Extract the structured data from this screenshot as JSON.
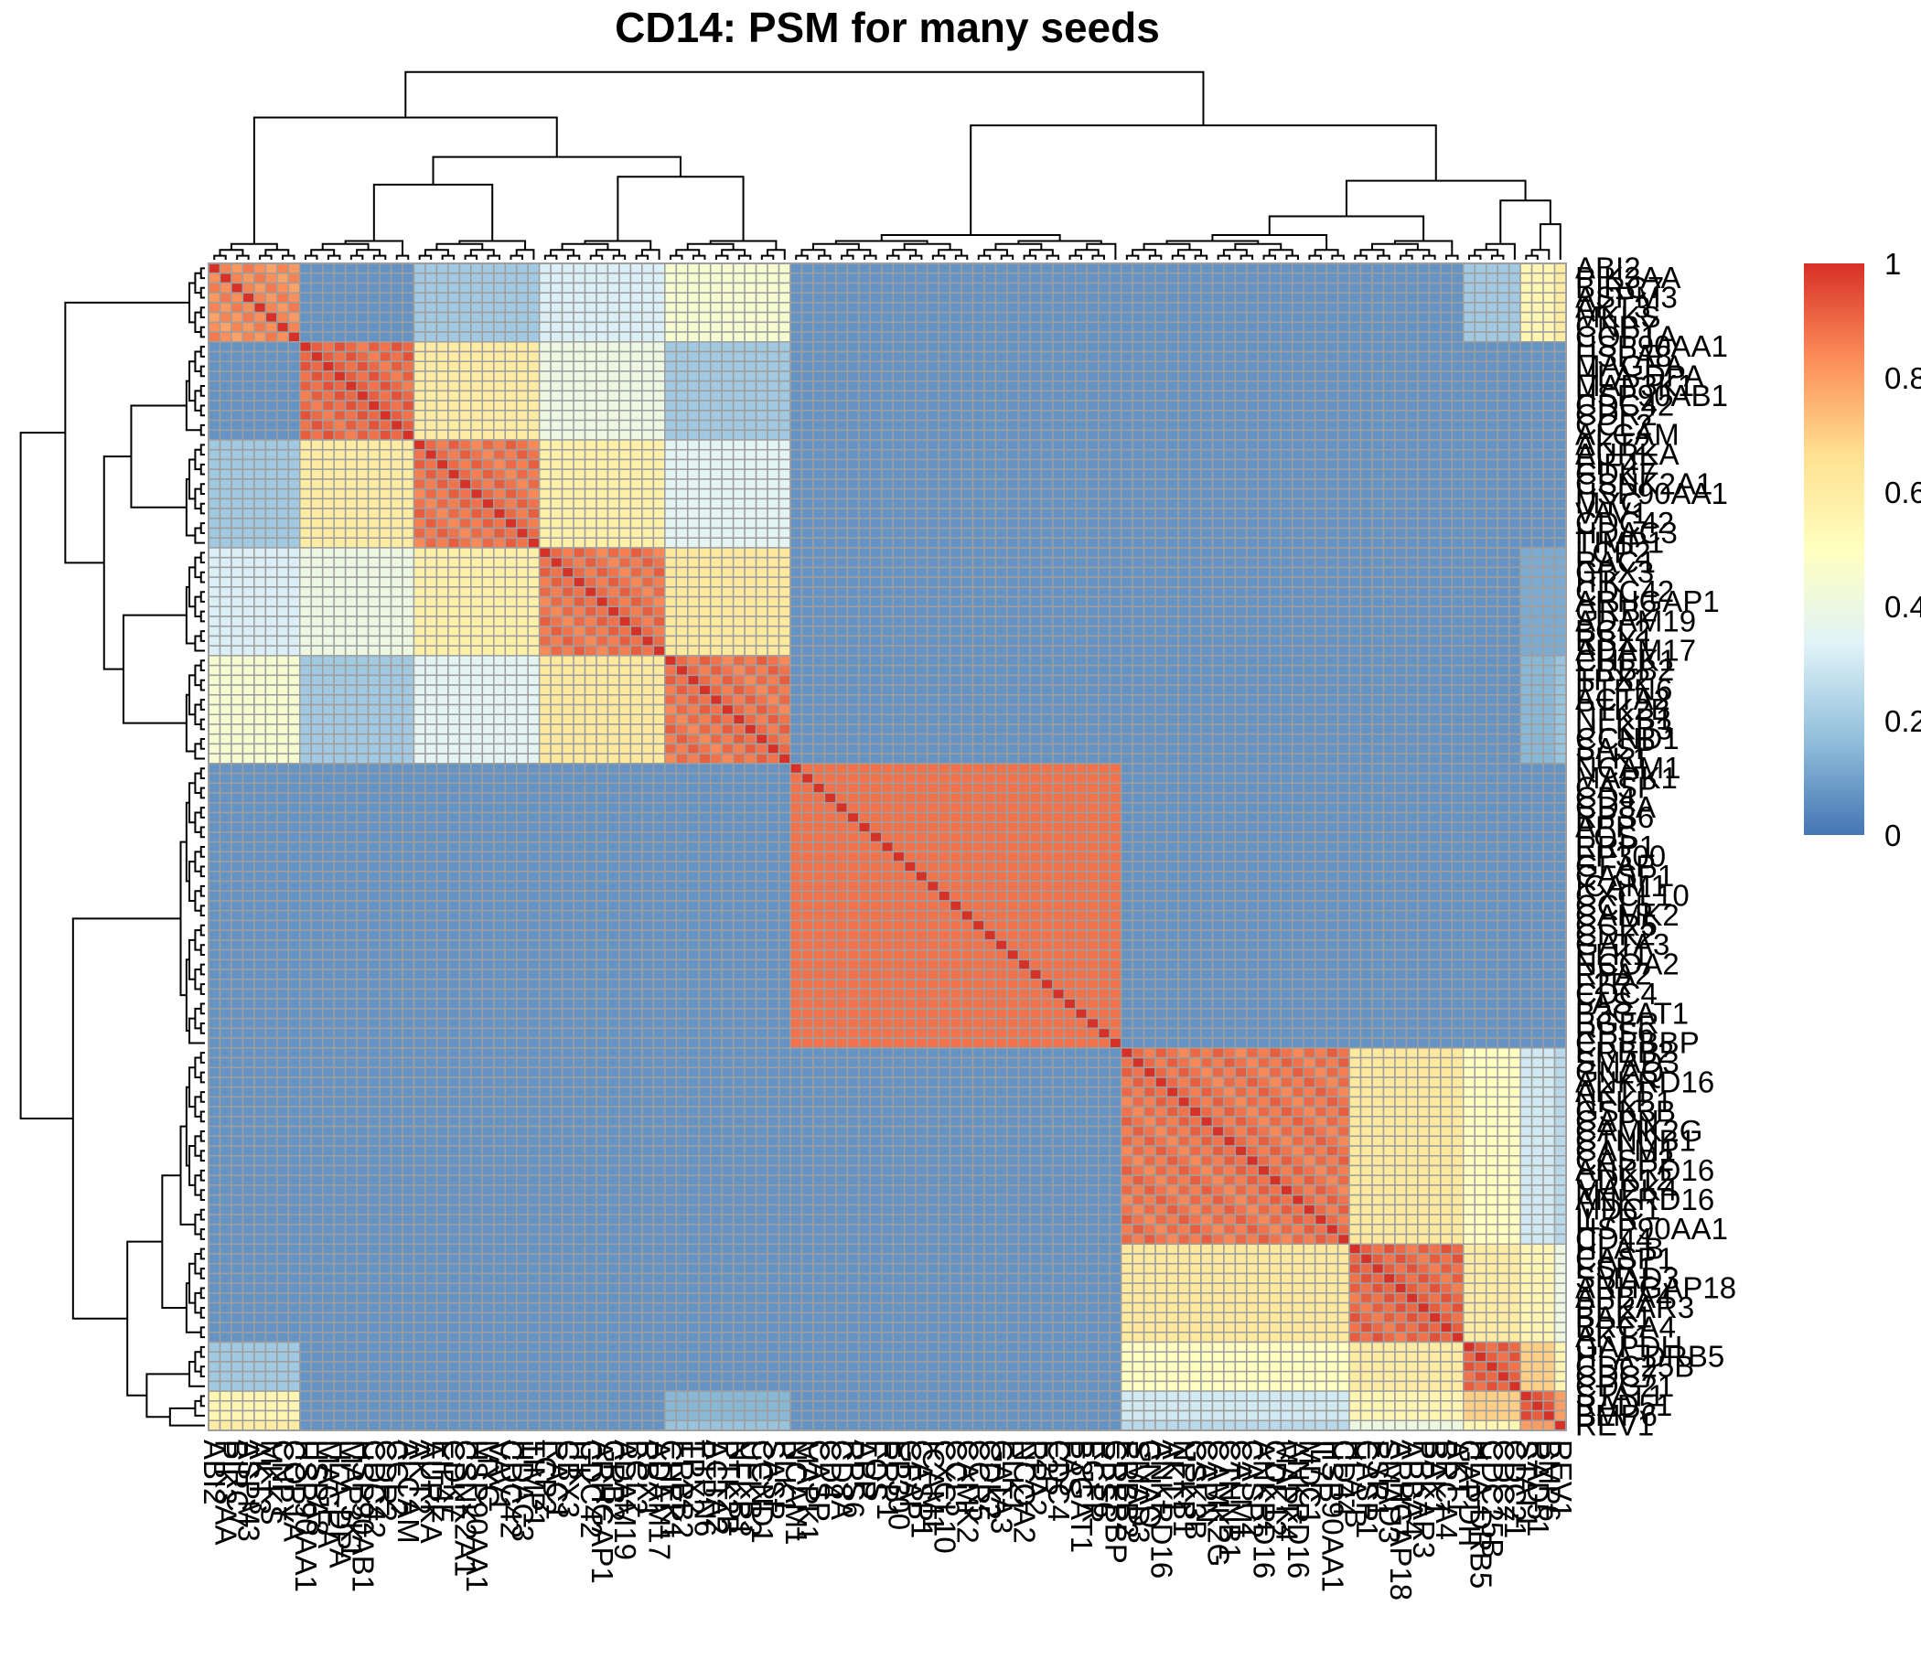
{
  "chart_data": {
    "type": "heatmap",
    "title": "CD14: PSM for many seeds",
    "row_labels": [
      "ABI2",
      "PIK3AA",
      "BIRC7",
      "ASPM3",
      "AKT3",
      "MKKS",
      "CNPY",
      "COP1A",
      "HSP90AA1",
      "HSPA8",
      "MAGEA",
      "HLA-DPA",
      "MAP3K1",
      "HSP90AB1",
      "CDC42",
      "CDR2",
      "CCL2",
      "ALCAM",
      "AKT2",
      "AURKA",
      "EIF4E",
      "CDK7",
      "CSNK2A1",
      "HSP90AA1",
      "MYC",
      "VAV1",
      "CDC42",
      "HDAC3",
      "TIMP1",
      "LCP2",
      "RAC1",
      "CBX3",
      "ITK",
      "CDC42",
      "ARHGAP1",
      "GRB2",
      "ADAM19",
      "BCL2",
      "RBX1",
      "ADAM17",
      "CHEK1",
      "ERBB2",
      "TPX2",
      "PTPN6",
      "ACTA2",
      "PTK2B",
      "NFKB1",
      "UFKB3",
      "CCND1",
      "SASP",
      "PLK1",
      "NCAM1",
      "MAPK1",
      "CASP",
      "CD4",
      "CD8A",
      "RPS6",
      "APP",
      "FOS",
      "RRP1",
      "EP300",
      "GFAP",
      "CASP1",
      "ICAM1",
      "CXCL10",
      "CCL5",
      "CAMK2",
      "CCR5",
      "CDK2",
      "GATA3",
      "ELK1",
      "NCOA2",
      "RPA2",
      "F2R",
      "CDC4",
      "FAS",
      "B3GAT1",
      "EGFR",
      "RPS6",
      "CREBBP",
      "ERBB2",
      "SMAD3",
      "GNAQ",
      "ANKRD16",
      "AKT1",
      "NFKB1",
      "GSK3B",
      "CAPN",
      "CAMK2G",
      "CTNNB1",
      "CALM1",
      "CASP2",
      "ANKRD16",
      "CDK12",
      "MAPK4",
      "ANKRD16",
      "MDC1",
      "IL7R",
      "HSP90AA1",
      "CD44",
      "HLA-B",
      "CASP1",
      "ESR1",
      "SMAD3",
      "ARHGAP18",
      "APBA4",
      "PPKAR3",
      "BAK1",
      "BRCA4",
      "AKT1",
      "GAPDH",
      "HLA-DRB5",
      "CDC25B",
      "CDC7",
      "CDC21",
      "STAT1",
      "RAD51",
      "BMP6",
      "REV1"
    ],
    "col_labels": [
      "ABI2",
      "PIK3AA",
      "BIRC7",
      "ASPM3",
      "AKT3",
      "MKKS",
      "CNPY",
      "COP1A",
      "HSP90AA1",
      "HSPA8",
      "MAGEA",
      "HLA-DPA",
      "MAP3K1",
      "HSP90AB1",
      "CDC42",
      "CDR2",
      "CCL2",
      "ALCAM",
      "AKT2",
      "AURKA",
      "EIF4E",
      "CDK7",
      "CSNK2A1",
      "HSP90AA1",
      "MYC",
      "VAV1",
      "CDC42",
      "HDAC3",
      "TIMP1",
      "LCP2",
      "RAC1",
      "CBX3",
      "ITK",
      "CDC42",
      "ARHGAP1",
      "GRB2",
      "ADAM19",
      "BCL2",
      "RBX1",
      "ADAM17",
      "CHEK1",
      "ERBB2",
      "TPX2",
      "PTPN6",
      "ACTA2",
      "PTK2B",
      "NFKB1",
      "UFKB3",
      "CCND1",
      "SASP",
      "PLK1",
      "NCAM1",
      "MAPK1",
      "CASP",
      "CD4",
      "CD8A",
      "RPS6",
      "APP",
      "FOS",
      "RRP1",
      "EP300",
      "GFAP",
      "CASP1",
      "ICAM1",
      "CXCL10",
      "CCL5",
      "CAMK2",
      "CCR5",
      "CDK2",
      "GATA3",
      "ELK1",
      "NCOA2",
      "RPA2",
      "F2R",
      "CDC4",
      "FAS",
      "B3GAT1",
      "EGFR",
      "RPS6",
      "CREBBP",
      "ERBB2",
      "SMAD3",
      "GNAQ",
      "ANKRD16",
      "AKT1",
      "NFKB1",
      "GSK3B",
      "CAPN",
      "CAMK2G",
      "CTNNB1",
      "CALM1",
      "CASP2",
      "ANKRD16",
      "CDK12",
      "MAPK4",
      "ANKRD16",
      "MDC1",
      "IL7R",
      "HSP90AA1",
      "CD44",
      "HLA-B",
      "CASP1",
      "ESR1",
      "SMAD3",
      "ARHGAP18",
      "APBA4",
      "PPKAR3",
      "BAK1",
      "BRCA4",
      "AKT1",
      "GAPDH",
      "HLA-DRB5",
      "CDC25B",
      "CDC7",
      "CDC21",
      "STAT1",
      "RAD51",
      "BMP6",
      "REV1"
    ],
    "cluster_breaks": [
      8,
      18,
      29,
      40,
      51,
      80,
      100,
      110,
      115,
      118
    ],
    "block_values": [
      [
        0.83,
        0.07,
        0.2,
        0.32,
        0.45,
        0.07,
        0.07,
        0.07,
        0.2,
        0.55,
        0.6
      ],
      [
        0.07,
        0.9,
        0.6,
        0.4,
        0.2,
        0.07,
        0.07,
        0.07,
        0.07,
        0.07,
        0.07
      ],
      [
        0.2,
        0.6,
        0.88,
        0.58,
        0.35,
        0.07,
        0.07,
        0.07,
        0.07,
        0.07,
        0.07
      ],
      [
        0.32,
        0.4,
        0.58,
        0.88,
        0.62,
        0.07,
        0.07,
        0.07,
        0.07,
        0.12,
        0.12
      ],
      [
        0.45,
        0.2,
        0.35,
        0.62,
        0.88,
        0.07,
        0.07,
        0.07,
        0.07,
        0.15,
        0.18
      ],
      [
        0.07,
        0.07,
        0.07,
        0.07,
        0.07,
        0.88,
        0.07,
        0.07,
        0.07,
        0.07,
        0.07
      ],
      [
        0.07,
        0.07,
        0.07,
        0.07,
        0.07,
        0.07,
        0.88,
        0.62,
        0.5,
        0.3,
        0.25
      ],
      [
        0.07,
        0.07,
        0.07,
        0.07,
        0.07,
        0.07,
        0.62,
        0.9,
        0.6,
        0.55,
        0.4
      ],
      [
        0.2,
        0.07,
        0.07,
        0.07,
        0.07,
        0.07,
        0.5,
        0.6,
        0.9,
        0.7,
        0.55
      ],
      [
        0.55,
        0.07,
        0.07,
        0.07,
        0.15,
        0.07,
        0.3,
        0.55,
        0.7,
        0.92,
        0.8
      ],
      [
        0.6,
        0.07,
        0.07,
        0.07,
        0.18,
        0.07,
        0.25,
        0.4,
        0.55,
        0.8,
        0.92
      ]
    ],
    "diagonal_value": 1.0,
    "color_scale": {
      "min": 0,
      "max": 1,
      "ticks": [
        "0",
        "0.2",
        "0.4",
        "0.6",
        "0.8",
        "1"
      ],
      "stops": [
        "#4575b4",
        "#91bfdb",
        "#e0f3f8",
        "#ffffbf",
        "#fee090",
        "#fc8d59",
        "#d73027"
      ]
    },
    "col_dendrogram": {
      "merges": [
        [
          0,
          1,
          0.02
        ],
        [
          2,
          3,
          0.03
        ],
        [
          3,
          4,
          0.04
        ],
        [
          4,
          5,
          0.05
        ],
        [
          5,
          6,
          0.06
        ],
        [
          6,
          7,
          0.08
        ],
        [
          0,
          8,
          0.18
        ],
        [
          9,
          10,
          0.04
        ],
        [
          11,
          12,
          0.06
        ],
        [
          13,
          14,
          0.08
        ],
        [
          14,
          15,
          0.14
        ],
        [
          15,
          16,
          0.28
        ],
        [
          17,
          18,
          0.05
        ],
        [
          19,
          20,
          0.07
        ],
        [
          21,
          22,
          0.1
        ],
        [
          22,
          23,
          0.18
        ],
        [
          23,
          24,
          0.32
        ],
        [
          25,
          26,
          0.05
        ],
        [
          26,
          27,
          0.14
        ],
        [
          27,
          28,
          0.22
        ],
        [
          28,
          29,
          0.3
        ],
        [
          30,
          31,
          0.45
        ],
        [
          32,
          33,
          0.55
        ],
        [
          34,
          35,
          0.95
        ],
        [
          36,
          37,
          0.02
        ],
        [
          38,
          39,
          0.03
        ],
        [
          40,
          41,
          0.06
        ],
        [
          42,
          43,
          0.08
        ],
        [
          44,
          45,
          0.1
        ],
        [
          45,
          46,
          0.14
        ],
        [
          47,
          48,
          0.18
        ],
        [
          49,
          50,
          0.22
        ],
        [
          50,
          51,
          0.3
        ],
        [
          52,
          53,
          0.42
        ],
        [
          54,
          55,
          0.55
        ],
        [
          56,
          57,
          0.6
        ],
        [
          58,
          59,
          0.63
        ],
        [
          60,
          61,
          0.66
        ],
        [
          62,
          63,
          0.7
        ],
        [
          64,
          65,
          0.95
        ]
      ]
    }
  },
  "title_text": "CD14: PSM for many seeds"
}
